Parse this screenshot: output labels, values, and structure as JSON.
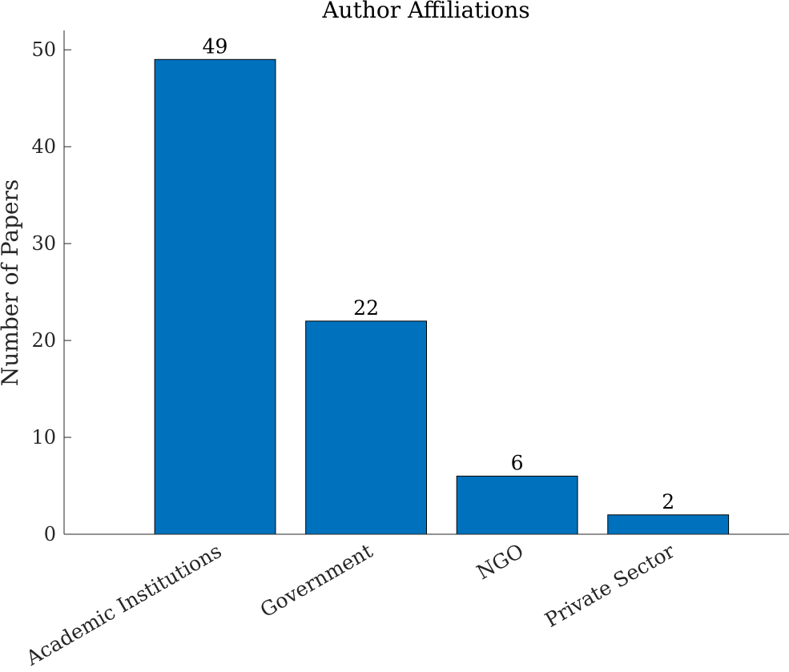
{
  "chart_data": {
    "type": "bar",
    "title": "Author Affiliations",
    "xlabel": "",
    "ylabel": "Number of Papers",
    "categories": [
      "Academic Institutions",
      "Government",
      "NGO",
      "Private Sector"
    ],
    "values": [
      49,
      22,
      6,
      2
    ],
    "data_labels": [
      "49",
      "22",
      "6",
      "2"
    ],
    "ylim": [
      0,
      52
    ],
    "yticks": [
      0,
      10,
      20,
      30,
      40,
      50
    ],
    "ytick_labels": [
      "0",
      "10",
      "20",
      "30",
      "40",
      "50"
    ],
    "grid": false,
    "legend": "none",
    "bar_color": "#0072BD",
    "bar_edge_color": "#000000",
    "category_label_rotation_deg": -30
  }
}
